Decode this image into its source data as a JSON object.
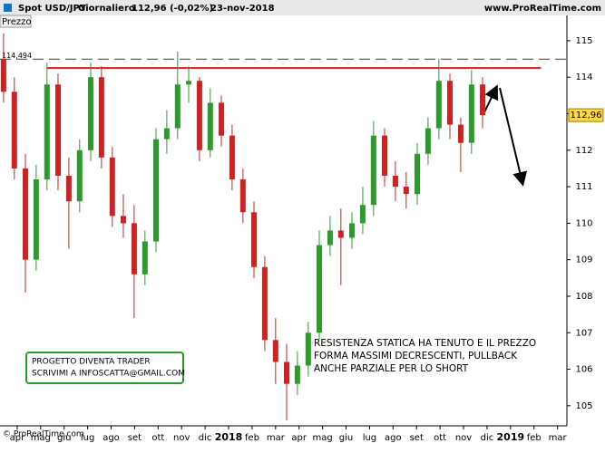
{
  "header": {
    "symbol": "Spot USD/JPY",
    "period": "Giornaliero",
    "quote": "112,96 (-0,02%)",
    "date": "23-nov-2018",
    "site": "www.ProRealTime.com"
  },
  "panel_label": "Prezzo",
  "footer": "© ProRealTime.com",
  "chart_data": {
    "type": "candlestick",
    "x": [
      -0.58,
      -0.12,
      0.35,
      0.81,
      1.27,
      1.74,
      2.2,
      2.66,
      3.13,
      3.59,
      4.05,
      4.52,
      4.98,
      5.44,
      5.91,
      6.37,
      6.83,
      7.3,
      7.76,
      8.22,
      8.69,
      9.15,
      9.61,
      10.08,
      10.54,
      11.0,
      11.47,
      11.93,
      12.39,
      12.86,
      13.32,
      13.78,
      14.25,
      14.71,
      15.17,
      15.64,
      16.1,
      16.56,
      17.03,
      17.49,
      17.95,
      18.42,
      18.88,
      19.34,
      19.81
    ],
    "open": [
      114.5,
      113.6,
      111.5,
      109.0,
      111.2,
      113.8,
      111.3,
      110.6,
      112.0,
      114.0,
      111.8,
      110.2,
      110.0,
      108.6,
      109.5,
      112.3,
      112.6,
      113.8,
      113.9,
      112.0,
      113.3,
      112.4,
      111.2,
      110.3,
      108.8,
      106.8,
      106.2,
      105.6,
      106.1,
      107.0,
      109.4,
      109.8,
      109.6,
      110.0,
      110.5,
      112.4,
      111.3,
      111.0,
      110.8,
      111.9,
      112.6,
      113.9,
      112.7,
      112.2,
      113.8
    ],
    "high": [
      115.2,
      114.0,
      111.9,
      111.6,
      114.4,
      114.1,
      111.8,
      112.3,
      114.4,
      114.3,
      112.1,
      110.8,
      110.5,
      109.8,
      112.6,
      113.1,
      114.7,
      114.3,
      114.0,
      113.7,
      113.5,
      112.7,
      111.5,
      110.6,
      109.1,
      107.4,
      106.7,
      106.5,
      107.3,
      109.8,
      110.2,
      110.4,
      110.3,
      111.0,
      112.8,
      112.6,
      111.7,
      111.4,
      112.2,
      112.9,
      114.5,
      114.1,
      112.9,
      114.2,
      114.0
    ],
    "low": [
      113.3,
      111.2,
      108.1,
      108.7,
      110.9,
      110.9,
      109.3,
      110.3,
      111.7,
      111.5,
      109.9,
      109.6,
      107.4,
      108.3,
      109.2,
      111.9,
      112.3,
      113.3,
      111.7,
      111.8,
      112.1,
      110.9,
      110.0,
      108.5,
      106.5,
      105.6,
      104.6,
      105.3,
      105.8,
      106.8,
      109.1,
      108.3,
      109.3,
      109.7,
      110.2,
      111.0,
      110.6,
      110.4,
      110.5,
      111.6,
      112.3,
      112.3,
      111.4,
      111.9,
      112.6
    ],
    "close": [
      113.6,
      111.5,
      109.0,
      111.2,
      113.8,
      111.3,
      110.6,
      112.0,
      114.0,
      111.8,
      110.2,
      110.0,
      108.6,
      109.5,
      112.3,
      112.6,
      113.8,
      113.9,
      112.0,
      113.3,
      112.4,
      111.2,
      110.3,
      108.8,
      106.8,
      106.2,
      105.6,
      106.1,
      107.0,
      109.4,
      109.8,
      109.6,
      110.0,
      110.5,
      112.4,
      111.3,
      111.0,
      110.8,
      111.9,
      112.6,
      113.9,
      112.7,
      112.2,
      113.8,
      112.96
    ],
    "colors": {
      "up": "#2e9a2e",
      "down": "#cc2222"
    },
    "xlim": [
      -0.73,
      23.4
    ],
    "ylim": [
      104.45,
      115.37
    ],
    "yticks": [
      105,
      106,
      107,
      108,
      109,
      110,
      111,
      112,
      113,
      114,
      115
    ],
    "xticks": [
      {
        "value": 0,
        "label": "apr"
      },
      {
        "value": 1,
        "label": "mag"
      },
      {
        "value": 2,
        "label": "giu"
      },
      {
        "value": 3,
        "label": "lug"
      },
      {
        "value": 4,
        "label": "ago"
      },
      {
        "value": 5,
        "label": "set"
      },
      {
        "value": 6,
        "label": "ott"
      },
      {
        "value": 7,
        "label": "nov"
      },
      {
        "value": 8,
        "label": "dic"
      },
      {
        "value": 9,
        "label": "2018"
      },
      {
        "value": 10,
        "label": "feb"
      },
      {
        "value": 11,
        "label": "mar"
      },
      {
        "value": 12,
        "label": "apr"
      },
      {
        "value": 13,
        "label": "mag"
      },
      {
        "value": 14,
        "label": "giu"
      },
      {
        "value": 15,
        "label": "lug"
      },
      {
        "value": 16,
        "label": "ago"
      },
      {
        "value": 17,
        "label": "set"
      },
      {
        "value": 18,
        "label": "ott"
      },
      {
        "value": 19,
        "label": "nov"
      },
      {
        "value": 20,
        "label": "dic"
      },
      {
        "value": 21,
        "label": "2019"
      },
      {
        "value": 22,
        "label": "feb"
      },
      {
        "value": 23,
        "label": "mar"
      }
    ],
    "last_price": {
      "value": 112.96,
      "label": "112,96"
    },
    "reference_line": {
      "value": 114.494,
      "label": "114,494"
    },
    "resistance": {
      "value": 114.25,
      "x": [
        1.27,
        22.3
      ],
      "color": "#e02020"
    },
    "annotation": [
      "RESISTENZA STATICA HA TENUTO E IL PREZZO",
      "FORMA MASSIMI DECRESCENTI, PULLBACK",
      "ANCHE PARZIALE PER LO SHORT"
    ],
    "note_box": [
      "PROGETTO DIVENTA TRADER",
      "SCRIVIMI A INFOSCATTA@GMAIL.COM"
    ]
  }
}
